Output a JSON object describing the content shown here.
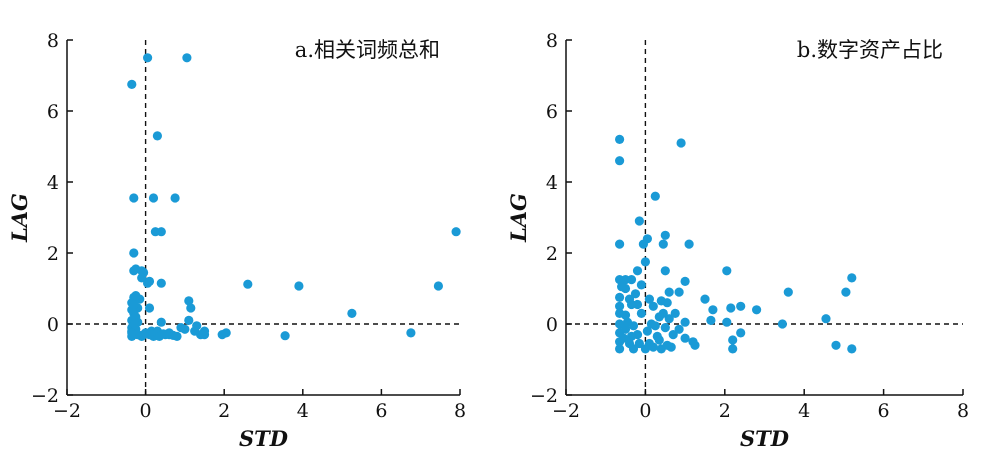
{
  "chart_data": [
    {
      "type": "scatter",
      "title": "a.相关词频总和",
      "xlabel": "STD",
      "ylabel": "LAG",
      "xlim": [
        -2,
        8
      ],
      "ylim": [
        -2,
        8
      ],
      "xticks": [
        "−2",
        "0",
        "2",
        "4",
        "6",
        "8"
      ],
      "yticks": [
        "−2",
        "0",
        "2",
        "4",
        "6",
        "8"
      ],
      "reference_lines": {
        "x": 0,
        "y": 0,
        "style": "dashed"
      },
      "marker_color": "#1a9ad6",
      "points": [
        [
          0.05,
          7.5
        ],
        [
          1.05,
          7.5
        ],
        [
          -0.35,
          6.75
        ],
        [
          0.3,
          5.3
        ],
        [
          -0.3,
          3.55
        ],
        [
          0.2,
          3.55
        ],
        [
          0.75,
          3.55
        ],
        [
          0.25,
          2.6
        ],
        [
          0.4,
          2.6
        ],
        [
          -0.3,
          2.0
        ],
        [
          7.9,
          2.6
        ],
        [
          -0.25,
          1.55
        ],
        [
          -0.1,
          1.5
        ],
        [
          -0.05,
          1.45
        ],
        [
          0.1,
          1.2
        ],
        [
          0.4,
          1.15
        ],
        [
          2.6,
          1.12
        ],
        [
          3.9,
          1.07
        ],
        [
          7.45,
          1.07
        ],
        [
          -0.3,
          0.75
        ],
        [
          -0.35,
          0.6
        ],
        [
          -0.2,
          0.45
        ],
        [
          0.1,
          0.45
        ],
        [
          1.1,
          0.65
        ],
        [
          1.15,
          0.45
        ],
        [
          -0.3,
          0.3
        ],
        [
          5.25,
          0.3
        ],
        [
          -0.35,
          0.1
        ],
        [
          0.4,
          0.05
        ],
        [
          1.1,
          0.1
        ],
        [
          1.3,
          -0.05
        ],
        [
          -0.3,
          -0.05
        ],
        [
          0.9,
          -0.1
        ],
        [
          -0.35,
          -0.2
        ],
        [
          0.3,
          -0.2
        ],
        [
          1.5,
          -0.2
        ],
        [
          0.6,
          -0.25
        ],
        [
          2.05,
          -0.25
        ],
        [
          6.75,
          -0.25
        ],
        [
          -0.3,
          -0.3
        ],
        [
          0.1,
          -0.3
        ],
        [
          0.5,
          -0.3
        ],
        [
          0.7,
          -0.32
        ],
        [
          1.4,
          -0.3
        ],
        [
          1.95,
          -0.3
        ],
        [
          3.55,
          -0.33
        ],
        [
          -0.1,
          -0.35
        ],
        [
          0.2,
          -0.35
        ],
        [
          0.8,
          -0.35
        ],
        [
          -0.35,
          0.4
        ],
        [
          -0.25,
          0.2
        ],
        [
          -0.35,
          -0.1
        ],
        [
          -0.25,
          -0.15
        ],
        [
          -0.35,
          -0.35
        ],
        [
          -0.2,
          -0.3
        ],
        [
          0.0,
          -0.25
        ],
        [
          0.15,
          -0.2
        ],
        [
          -0.2,
          0.05
        ],
        [
          -0.3,
          0.55
        ],
        [
          -0.15,
          0.7
        ],
        [
          -0.25,
          0.8
        ],
        [
          0.3,
          -0.25
        ],
        [
          1.25,
          -0.2
        ],
        [
          -0.05,
          -0.3
        ],
        [
          0.35,
          -0.35
        ],
        [
          -0.3,
          1.5
        ],
        [
          -0.1,
          1.3
        ],
        [
          0.05,
          1.15
        ],
        [
          0.45,
          -0.28
        ],
        [
          1.5,
          -0.3
        ],
        [
          -0.35,
          -0.25
        ],
        [
          0.6,
          -0.3
        ],
        [
          1.0,
          -0.15
        ],
        [
          -0.28,
          0.0
        ]
      ]
    },
    {
      "type": "scatter",
      "title": "b.数字资产占比",
      "xlabel": "STD",
      "ylabel": "LAG",
      "xlim": [
        -2,
        8
      ],
      "ylim": [
        -2,
        8
      ],
      "xticks": [
        "−2",
        "0",
        "2",
        "4",
        "6",
        "8"
      ],
      "yticks": [
        "−2",
        "0",
        "2",
        "4",
        "6",
        "8"
      ],
      "reference_lines": {
        "x": 0,
        "y": 0,
        "style": "dashed"
      },
      "marker_color": "#1a9ad6",
      "points": [
        [
          -0.65,
          5.2
        ],
        [
          -0.65,
          4.6
        ],
        [
          0.9,
          5.1
        ],
        [
          0.25,
          3.6
        ],
        [
          -0.15,
          2.9
        ],
        [
          0.5,
          2.5
        ],
        [
          0.05,
          2.4
        ],
        [
          -0.65,
          2.25
        ],
        [
          0.45,
          2.25
        ],
        [
          -0.05,
          2.25
        ],
        [
          1.1,
          2.25
        ],
        [
          0.0,
          1.75
        ],
        [
          -0.2,
          1.5
        ],
        [
          0.5,
          1.5
        ],
        [
          2.05,
          1.5
        ],
        [
          -0.65,
          1.25
        ],
        [
          -0.5,
          1.25
        ],
        [
          -0.35,
          1.25
        ],
        [
          -0.1,
          1.1
        ],
        [
          1.0,
          1.2
        ],
        [
          5.2,
          1.3
        ],
        [
          0.6,
          0.9
        ],
        [
          0.85,
          0.9
        ],
        [
          3.6,
          0.9
        ],
        [
          5.05,
          0.9
        ],
        [
          -0.65,
          0.75
        ],
        [
          -0.4,
          0.7
        ],
        [
          0.4,
          0.65
        ],
        [
          0.55,
          0.6
        ],
        [
          1.5,
          0.7
        ],
        [
          -0.2,
          0.55
        ],
        [
          2.4,
          0.5
        ],
        [
          2.15,
          0.45
        ],
        [
          1.7,
          0.4
        ],
        [
          2.8,
          0.4
        ],
        [
          0.2,
          0.5
        ],
        [
          0.75,
          0.3
        ],
        [
          -0.65,
          0.3
        ],
        [
          -0.5,
          0.25
        ],
        [
          0.35,
          0.2
        ],
        [
          0.6,
          0.15
        ],
        [
          4.55,
          0.15
        ],
        [
          1.65,
          0.1
        ],
        [
          2.05,
          0.05
        ],
        [
          3.45,
          0.0
        ],
        [
          1.0,
          0.05
        ],
        [
          0.15,
          0.0
        ],
        [
          -0.65,
          0.0
        ],
        [
          -0.3,
          -0.05
        ],
        [
          0.5,
          -0.1
        ],
        [
          0.85,
          -0.15
        ],
        [
          2.4,
          -0.25
        ],
        [
          -0.65,
          -0.25
        ],
        [
          -0.2,
          -0.3
        ],
        [
          0.3,
          -0.35
        ],
        [
          1.0,
          -0.4
        ],
        [
          2.2,
          -0.45
        ],
        [
          -0.65,
          -0.5
        ],
        [
          -0.4,
          -0.55
        ],
        [
          0.1,
          -0.55
        ],
        [
          0.55,
          -0.6
        ],
        [
          1.25,
          -0.6
        ],
        [
          4.8,
          -0.6
        ],
        [
          2.2,
          -0.7
        ],
        [
          5.2,
          -0.7
        ],
        [
          -0.65,
          -0.7
        ],
        [
          -0.3,
          -0.7
        ],
        [
          0.0,
          -0.7
        ],
        [
          0.4,
          -0.7
        ],
        [
          -0.5,
          1.0
        ],
        [
          -0.35,
          0.55
        ],
        [
          -0.5,
          -0.15
        ],
        [
          -0.1,
          0.3
        ],
        [
          0.05,
          -0.2
        ],
        [
          0.2,
          -0.65
        ],
        [
          -0.55,
          -0.4
        ],
        [
          -0.25,
          0.85
        ],
        [
          0.35,
          -0.45
        ],
        [
          0.7,
          -0.3
        ],
        [
          1.2,
          -0.5
        ],
        [
          -0.65,
          0.5
        ],
        [
          -0.45,
          0.05
        ],
        [
          0.1,
          0.7
        ],
        [
          0.25,
          -0.05
        ],
        [
          -0.15,
          -0.55
        ],
        [
          0.45,
          0.3
        ],
        [
          -0.6,
          1.05
        ],
        [
          -0.35,
          -0.35
        ],
        [
          0.65,
          -0.65
        ]
      ]
    }
  ]
}
